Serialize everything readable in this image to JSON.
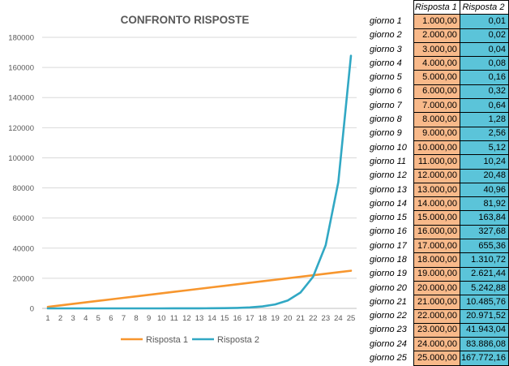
{
  "chart_data": {
    "type": "line",
    "title": "CONFRONTO RISPOSTE",
    "xlabel": "",
    "ylabel": "",
    "x": [
      1,
      2,
      3,
      4,
      5,
      6,
      7,
      8,
      9,
      10,
      11,
      12,
      13,
      14,
      15,
      16,
      17,
      18,
      19,
      20,
      21,
      22,
      23,
      24,
      25
    ],
    "ylim": [
      0,
      180000
    ],
    "yticks": [
      0,
      20000,
      40000,
      60000,
      80000,
      100000,
      120000,
      140000,
      160000,
      180000
    ],
    "grid": true,
    "legend_position": "bottom",
    "series": [
      {
        "name": "Risposta 1",
        "color": "#F7962E",
        "values": [
          1000,
          2000,
          3000,
          4000,
          5000,
          6000,
          7000,
          8000,
          9000,
          10000,
          11000,
          12000,
          13000,
          14000,
          15000,
          16000,
          17000,
          18000,
          19000,
          20000,
          21000,
          22000,
          23000,
          24000,
          25000
        ]
      },
      {
        "name": "Risposta 2",
        "color": "#31A8C4",
        "values": [
          0.01,
          0.02,
          0.04,
          0.08,
          0.16,
          0.32,
          0.64,
          1.28,
          2.56,
          5.12,
          10.24,
          20.48,
          40.96,
          81.92,
          163.84,
          327.68,
          655.36,
          1310.72,
          2621.44,
          5242.88,
          10485.76,
          20971.52,
          41943.04,
          83886.08,
          167772.16
        ]
      }
    ]
  },
  "table": {
    "headers": [
      "Risposta 1",
      "Risposta 2"
    ],
    "rows": [
      {
        "label": "giorno 1",
        "v1": "1.000,00",
        "v2": "0,01"
      },
      {
        "label": "giorno 2",
        "v1": "2.000,00",
        "v2": "0,02"
      },
      {
        "label": "giorno 3",
        "v1": "3.000,00",
        "v2": "0,04"
      },
      {
        "label": "giorno 4",
        "v1": "4.000,00",
        "v2": "0,08"
      },
      {
        "label": "giorno 5",
        "v1": "5.000,00",
        "v2": "0,16"
      },
      {
        "label": "giorno 6",
        "v1": "6.000,00",
        "v2": "0,32"
      },
      {
        "label": "giorno 7",
        "v1": "7.000,00",
        "v2": "0,64"
      },
      {
        "label": "giorno 8",
        "v1": "8.000,00",
        "v2": "1,28"
      },
      {
        "label": "giorno 9",
        "v1": "9.000,00",
        "v2": "2,56"
      },
      {
        "label": "giorno 10",
        "v1": "10.000,00",
        "v2": "5,12"
      },
      {
        "label": "giorno 11",
        "v1": "11.000,00",
        "v2": "10,24"
      },
      {
        "label": "giorno 12",
        "v1": "12.000,00",
        "v2": "20,48"
      },
      {
        "label": "giorno 13",
        "v1": "13.000,00",
        "v2": "40,96"
      },
      {
        "label": "giorno 14",
        "v1": "14.000,00",
        "v2": "81,92"
      },
      {
        "label": "giorno 15",
        "v1": "15.000,00",
        "v2": "163,84"
      },
      {
        "label": "giorno 16",
        "v1": "16.000,00",
        "v2": "327,68"
      },
      {
        "label": "giorno 17",
        "v1": "17.000,00",
        "v2": "655,36"
      },
      {
        "label": "giorno 18",
        "v1": "18.000,00",
        "v2": "1.310,72"
      },
      {
        "label": "giorno 19",
        "v1": "19.000,00",
        "v2": "2.621,44"
      },
      {
        "label": "giorno 20",
        "v1": "20.000,00",
        "v2": "5.242,88"
      },
      {
        "label": "giorno 21",
        "v1": "21.000,00",
        "v2": "10.485,76"
      },
      {
        "label": "giorno 22",
        "v1": "22.000,00",
        "v2": "20.971,52"
      },
      {
        "label": "giorno 23",
        "v1": "23.000,00",
        "v2": "41.943,04"
      },
      {
        "label": "giorno 24",
        "v1": "24.000,00",
        "v2": "83.886,08"
      },
      {
        "label": "giorno 25",
        "v1": "25.000,00",
        "v2": "167.772,16"
      }
    ]
  }
}
